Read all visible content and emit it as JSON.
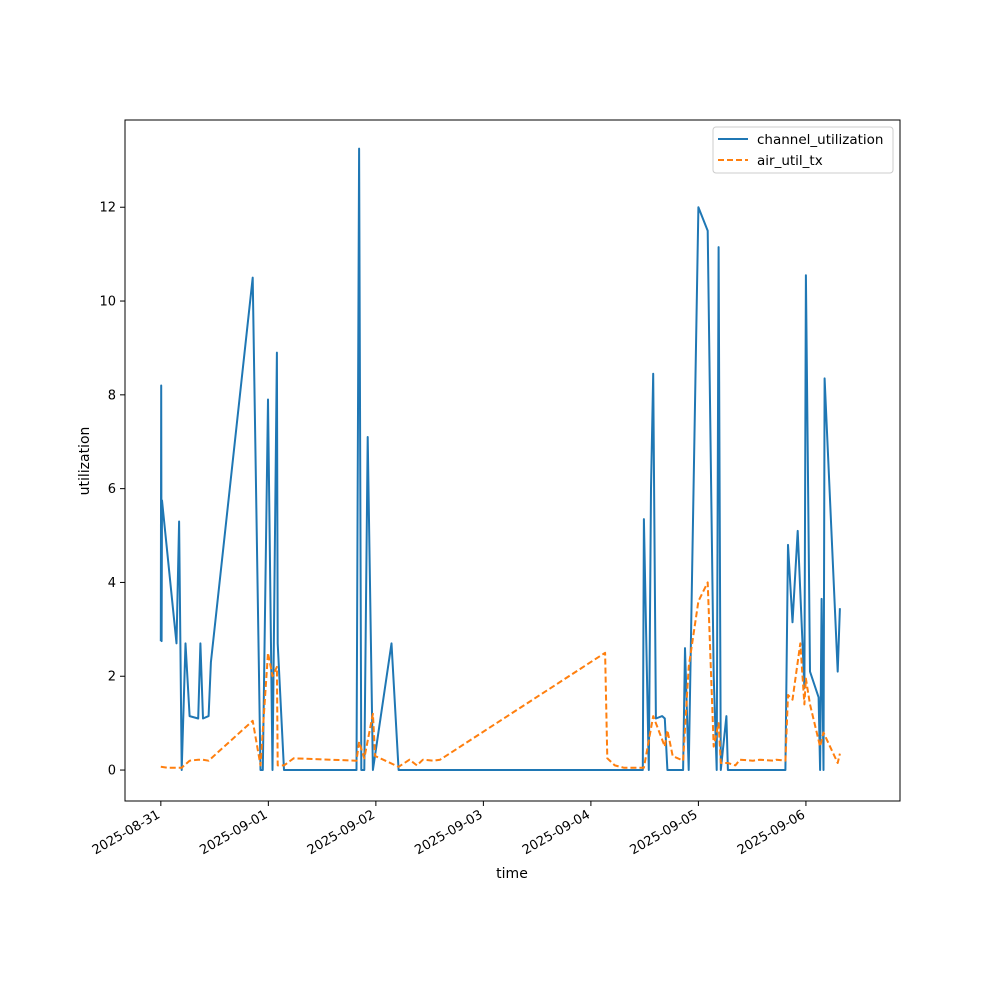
{
  "chart_data": {
    "type": "line",
    "xlabel": "time",
    "ylabel": "utilization",
    "x_axis": "date",
    "xlim": [
      "2025-08-30T16:00",
      "2025-09-06T21:00"
    ],
    "ylim": [
      -0.66,
      13.86
    ],
    "x_ticks": [
      "2025-08-31",
      "2025-09-01",
      "2025-09-02",
      "2025-09-03",
      "2025-09-04",
      "2025-09-05",
      "2025-09-06"
    ],
    "y_ticks": [
      0,
      2,
      4,
      6,
      8,
      10,
      12
    ],
    "legend": {
      "position": "top-right"
    },
    "grid": false,
    "series": [
      {
        "name": "channel_utilization",
        "color": "#1f77b4",
        "style": "solid",
        "points": [
          [
            "2025-08-31T00:00",
            2.75
          ],
          [
            "2025-08-31T00:05",
            8.2
          ],
          [
            "2025-08-31T00:10",
            2.75
          ],
          [
            "2025-08-31T00:15",
            5.75
          ],
          [
            "2025-08-31T03:30",
            2.7
          ],
          [
            "2025-08-31T04:05",
            5.3
          ],
          [
            "2025-08-31T04:40",
            0.0
          ],
          [
            "2025-08-31T05:30",
            2.7
          ],
          [
            "2025-08-31T06:25",
            1.15
          ],
          [
            "2025-08-31T08:20",
            1.1
          ],
          [
            "2025-08-31T08:50",
            2.7
          ],
          [
            "2025-08-31T09:25",
            1.1
          ],
          [
            "2025-08-31T10:40",
            1.15
          ],
          [
            "2025-08-31T11:10",
            2.3
          ],
          [
            "2025-08-31T20:30",
            10.5
          ],
          [
            "2025-08-31T22:15",
            0.0
          ],
          [
            "2025-08-31T22:45",
            0.0
          ],
          [
            "2025-08-31T23:55",
            7.9
          ],
          [
            "2025-09-01T00:55",
            0.0
          ],
          [
            "2025-09-01T01:55",
            8.9
          ],
          [
            "2025-09-01T02:05",
            2.7
          ],
          [
            "2025-09-01T03:30",
            0.0
          ],
          [
            "2025-09-01T19:40",
            0.0
          ],
          [
            "2025-09-01T20:15",
            13.25
          ],
          [
            "2025-09-01T20:45",
            0.0
          ],
          [
            "2025-09-01T21:25",
            0.0
          ],
          [
            "2025-09-01T22:10",
            7.1
          ],
          [
            "2025-09-01T23:20",
            0.0
          ],
          [
            "2025-09-02T03:30",
            2.7
          ],
          [
            "2025-09-02T05:05",
            0.0
          ],
          [
            "2025-09-04T11:35",
            0.0
          ],
          [
            "2025-09-04T11:50",
            5.35
          ],
          [
            "2025-09-04T12:55",
            0.0
          ],
          [
            "2025-09-04T13:25",
            6.0
          ],
          [
            "2025-09-04T13:55",
            8.45
          ],
          [
            "2025-09-04T14:30",
            1.1
          ],
          [
            "2025-09-04T15:55",
            1.15
          ],
          [
            "2025-09-04T16:30",
            1.1
          ],
          [
            "2025-09-04T17:05",
            0.0
          ],
          [
            "2025-09-04T20:35",
            0.0
          ],
          [
            "2025-09-04T21:00",
            2.6
          ],
          [
            "2025-09-04T21:50",
            0.0
          ],
          [
            "2025-09-05T00:00",
            12.0
          ],
          [
            "2025-09-05T02:05",
            11.5
          ],
          [
            "2025-09-05T03:25",
            2.0
          ],
          [
            "2025-09-05T04:05",
            0.0
          ],
          [
            "2025-09-05T04:30",
            11.15
          ],
          [
            "2025-09-05T05:00",
            0.0
          ],
          [
            "2025-09-05T06:15",
            1.15
          ],
          [
            "2025-09-05T06:35",
            0.0
          ],
          [
            "2025-09-05T19:25",
            0.0
          ],
          [
            "2025-09-05T20:00",
            4.8
          ],
          [
            "2025-09-05T21:00",
            3.15
          ],
          [
            "2025-09-05T22:10",
            5.1
          ],
          [
            "2025-09-05T23:40",
            1.75
          ],
          [
            "2025-09-06T00:00",
            10.55
          ],
          [
            "2025-09-06T00:55",
            2.1
          ],
          [
            "2025-09-06T02:50",
            1.55
          ],
          [
            "2025-09-06T03:10",
            0.0
          ],
          [
            "2025-09-06T03:30",
            3.65
          ],
          [
            "2025-09-06T03:55",
            0.0
          ],
          [
            "2025-09-06T04:10",
            8.35
          ],
          [
            "2025-09-06T07:05",
            2.1
          ],
          [
            "2025-09-06T07:35",
            3.45
          ]
        ]
      },
      {
        "name": "air_util_tx",
        "color": "#ff7f0e",
        "style": "dashed",
        "points": [
          [
            "2025-08-31T00:00",
            0.07
          ],
          [
            "2025-08-31T01:30",
            0.05
          ],
          [
            "2025-08-31T04:40",
            0.05
          ],
          [
            "2025-08-31T06:25",
            0.2
          ],
          [
            "2025-08-31T08:20",
            0.22
          ],
          [
            "2025-08-31T09:25",
            0.22
          ],
          [
            "2025-08-31T10:40",
            0.2
          ],
          [
            "2025-08-31T20:30",
            1.05
          ],
          [
            "2025-08-31T22:15",
            0.1
          ],
          [
            "2025-08-31T23:55",
            2.5
          ],
          [
            "2025-09-01T00:55",
            2.0
          ],
          [
            "2025-09-01T01:55",
            2.2
          ],
          [
            "2025-09-01T02:05",
            0.1
          ],
          [
            "2025-09-01T03:30",
            0.1
          ],
          [
            "2025-09-01T05:40",
            0.25
          ],
          [
            "2025-09-01T19:40",
            0.2
          ],
          [
            "2025-09-01T20:15",
            0.6
          ],
          [
            "2025-09-01T21:25",
            0.25
          ],
          [
            "2025-09-01T23:20",
            1.2
          ],
          [
            "2025-09-01T23:50",
            0.3
          ],
          [
            "2025-09-02T05:05",
            0.07
          ],
          [
            "2025-09-02T07:30",
            0.22
          ],
          [
            "2025-09-02T09:10",
            0.1
          ],
          [
            "2025-09-02T10:30",
            0.22
          ],
          [
            "2025-09-02T12:50",
            0.2
          ],
          [
            "2025-09-02T14:20",
            0.22
          ],
          [
            "2025-09-04T03:10",
            2.5
          ],
          [
            "2025-09-04T03:40",
            0.25
          ],
          [
            "2025-09-04T05:20",
            0.1
          ],
          [
            "2025-09-04T07:20",
            0.05
          ],
          [
            "2025-09-04T11:35",
            0.05
          ],
          [
            "2025-09-04T11:50",
            0.05
          ],
          [
            "2025-09-04T13:55",
            1.15
          ],
          [
            "2025-09-04T16:30",
            0.5
          ],
          [
            "2025-09-04T17:05",
            0.85
          ],
          [
            "2025-09-04T18:15",
            0.3
          ],
          [
            "2025-09-04T20:35",
            0.2
          ],
          [
            "2025-09-04T21:50",
            2.2
          ],
          [
            "2025-09-05T00:00",
            3.6
          ],
          [
            "2025-09-05T02:05",
            4.0
          ],
          [
            "2025-09-05T03:25",
            0.5
          ],
          [
            "2025-09-05T04:30",
            1.0
          ],
          [
            "2025-09-05T05:00",
            0.15
          ],
          [
            "2025-09-05T06:35",
            0.15
          ],
          [
            "2025-09-05T08:15",
            0.1
          ],
          [
            "2025-09-05T09:15",
            0.22
          ],
          [
            "2025-09-05T12:10",
            0.2
          ],
          [
            "2025-09-05T13:40",
            0.22
          ],
          [
            "2025-09-05T16:50",
            0.2
          ],
          [
            "2025-09-05T17:25",
            0.22
          ],
          [
            "2025-09-05T19:25",
            0.2
          ],
          [
            "2025-09-05T20:00",
            1.6
          ],
          [
            "2025-09-05T21:00",
            1.5
          ],
          [
            "2025-09-05T22:45",
            2.7
          ],
          [
            "2025-09-05T23:40",
            1.4
          ],
          [
            "2025-09-06T00:00",
            1.95
          ],
          [
            "2025-09-06T00:55",
            1.4
          ],
          [
            "2025-09-06T03:10",
            0.5
          ],
          [
            "2025-09-06T03:55",
            0.8
          ],
          [
            "2025-09-06T07:05",
            0.15
          ],
          [
            "2025-09-06T07:35",
            0.35
          ]
        ]
      }
    ]
  }
}
